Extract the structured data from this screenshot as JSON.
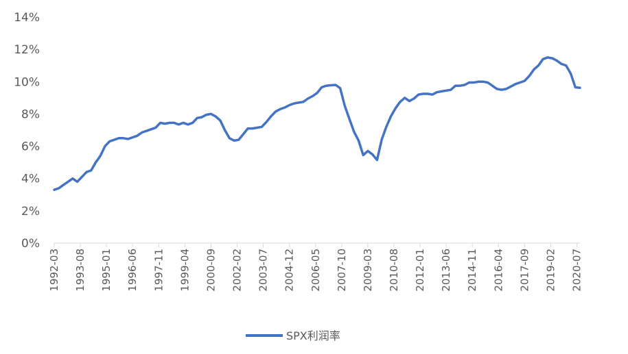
{
  "chart_data": {
    "type": "line",
    "title": "",
    "xlabel": "",
    "ylabel": "",
    "ylim": [
      0,
      14
    ],
    "y_ticks": [
      "0%",
      "2%",
      "4%",
      "6%",
      "8%",
      "10%",
      "12%",
      "14%"
    ],
    "x_tick_labels": [
      "1992-03",
      "1993-08",
      "1995-01",
      "1996-06",
      "1997-11",
      "1999-04",
      "2000-09",
      "2002-02",
      "2003-07",
      "2004-12",
      "2006-05",
      "2007-10",
      "2009-03",
      "2010-08",
      "2012-01",
      "2013-06",
      "2014-11",
      "2016-04",
      "2017-09",
      "2019-02",
      "2020-07"
    ],
    "grid": false,
    "legend_position": "bottom",
    "series": [
      {
        "name": "SPX利润率",
        "color": "#4472C4",
        "x": [
          "1992-03",
          "1992-06",
          "1992-09",
          "1992-12",
          "1993-03",
          "1993-06",
          "1993-09",
          "1993-12",
          "1994-03",
          "1994-06",
          "1994-09",
          "1994-12",
          "1995-03",
          "1995-06",
          "1995-09",
          "1995-12",
          "1996-03",
          "1996-06",
          "1996-09",
          "1996-12",
          "1997-03",
          "1997-06",
          "1997-09",
          "1997-12",
          "1998-03",
          "1998-06",
          "1998-09",
          "1998-12",
          "1999-03",
          "1999-06",
          "1999-09",
          "1999-12",
          "2000-03",
          "2000-06",
          "2000-09",
          "2000-12",
          "2001-03",
          "2001-06",
          "2001-09",
          "2001-12",
          "2002-03",
          "2002-06",
          "2002-09",
          "2002-12",
          "2003-03",
          "2003-06",
          "2003-09",
          "2003-12",
          "2004-03",
          "2004-06",
          "2004-09",
          "2004-12",
          "2005-03",
          "2005-06",
          "2005-09",
          "2005-12",
          "2006-03",
          "2006-06",
          "2006-09",
          "2006-12",
          "2007-03",
          "2007-06",
          "2007-09",
          "2007-12",
          "2008-03",
          "2008-06",
          "2008-09",
          "2008-12",
          "2009-03",
          "2009-06",
          "2009-09",
          "2009-12",
          "2010-03",
          "2010-06",
          "2010-09",
          "2010-12",
          "2011-03",
          "2011-06",
          "2011-09",
          "2011-12",
          "2012-03",
          "2012-06",
          "2012-09",
          "2012-12",
          "2013-03",
          "2013-06",
          "2013-09",
          "2013-12",
          "2014-03",
          "2014-06",
          "2014-09",
          "2014-12",
          "2015-03",
          "2015-06",
          "2015-09",
          "2015-12",
          "2016-03",
          "2016-06",
          "2016-09",
          "2016-12",
          "2017-03",
          "2017-06",
          "2017-09",
          "2017-12",
          "2018-03",
          "2018-06",
          "2018-09",
          "2018-12",
          "2019-03",
          "2019-06",
          "2019-09",
          "2019-12",
          "2020-03",
          "2020-06",
          "2020-09"
        ],
        "values": [
          3.3,
          3.4,
          3.6,
          3.8,
          4.0,
          3.8,
          4.1,
          4.4,
          4.5,
          5.0,
          5.4,
          6.0,
          6.3,
          6.4,
          6.5,
          6.5,
          6.45,
          6.55,
          6.65,
          6.85,
          6.95,
          7.05,
          7.15,
          7.45,
          7.4,
          7.45,
          7.45,
          7.35,
          7.45,
          7.35,
          7.45,
          7.75,
          7.8,
          7.95,
          8.0,
          7.85,
          7.6,
          7.0,
          6.5,
          6.35,
          6.4,
          6.75,
          7.1,
          7.1,
          7.15,
          7.2,
          7.5,
          7.85,
          8.15,
          8.3,
          8.4,
          8.55,
          8.65,
          8.7,
          8.75,
          8.95,
          9.1,
          9.3,
          9.65,
          9.75,
          9.78,
          9.8,
          9.6,
          8.5,
          7.7,
          6.9,
          6.35,
          5.45,
          5.7,
          5.5,
          5.15,
          6.4,
          7.2,
          7.85,
          8.35,
          8.75,
          9.0,
          8.8,
          8.95,
          9.2,
          9.25,
          9.25,
          9.2,
          9.35,
          9.4,
          9.45,
          9.5,
          9.75,
          9.75,
          9.8,
          9.95,
          9.95,
          10.0,
          10.0,
          9.95,
          9.75,
          9.55,
          9.5,
          9.55,
          9.7,
          9.85,
          9.95,
          10.05,
          10.35,
          10.75,
          11.0,
          11.4,
          11.5,
          11.45,
          11.3,
          11.1,
          11.0,
          10.5,
          9.65,
          9.62
        ]
      }
    ]
  }
}
